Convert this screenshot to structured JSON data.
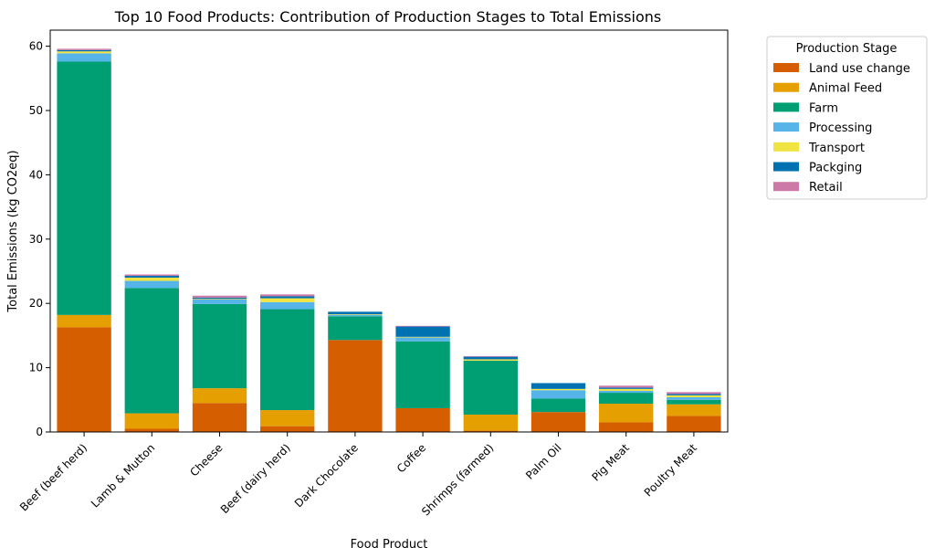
{
  "chart_data": {
    "type": "bar",
    "stacked": true,
    "title": "Top 10 Food Products: Contribution of Production Stages to Total Emissions",
    "xlabel": "Food Product",
    "ylabel": "Total Emissions (kg CO2eq)",
    "ylim": [
      0,
      62.5
    ],
    "yticks": [
      0,
      10,
      20,
      30,
      40,
      50,
      60
    ],
    "grid": false,
    "legend_title": "Production Stage",
    "legend_position": "outside-top-right",
    "categories": [
      "Beef (beef herd)",
      "Lamb & Mutton",
      "Cheese",
      "Beef (dairy herd)",
      "Dark Chocolate",
      "Coffee",
      "Shrimps (farmed)",
      "Palm Oil",
      "Pig Meat",
      "Poultry Meat"
    ],
    "series": [
      {
        "name": "Land use change",
        "color": "#d55e00",
        "values": [
          16.3,
          0.5,
          4.5,
          0.9,
          14.3,
          3.7,
          0.2,
          3.1,
          1.5,
          2.5
        ]
      },
      {
        "name": "Animal Feed",
        "color": "#e69f00",
        "values": [
          1.9,
          2.4,
          2.3,
          2.5,
          0.0,
          0.0,
          2.5,
          0.0,
          2.9,
          1.8
        ]
      },
      {
        "name": "Farm",
        "color": "#009e73",
        "values": [
          39.4,
          19.5,
          13.1,
          15.7,
          3.7,
          10.4,
          8.4,
          2.1,
          1.7,
          0.7
        ]
      },
      {
        "name": "Processing",
        "color": "#56b4e9",
        "values": [
          1.3,
          1.1,
          0.7,
          1.1,
          0.2,
          0.6,
          0.0,
          1.3,
          0.3,
          0.4
        ]
      },
      {
        "name": "Transport",
        "color": "#f0e442",
        "values": [
          0.3,
          0.5,
          0.1,
          0.6,
          0.1,
          0.1,
          0.2,
          0.2,
          0.3,
          0.3
        ]
      },
      {
        "name": "Packging",
        "color": "#0072b2",
        "values": [
          0.2,
          0.3,
          0.2,
          0.3,
          0.4,
          1.6,
          0.4,
          0.9,
          0.2,
          0.2
        ]
      },
      {
        "name": "Retail",
        "color": "#cc79a7",
        "values": [
          0.2,
          0.2,
          0.3,
          0.3,
          0.0,
          0.1,
          0.1,
          0.0,
          0.3,
          0.3
        ]
      }
    ]
  }
}
